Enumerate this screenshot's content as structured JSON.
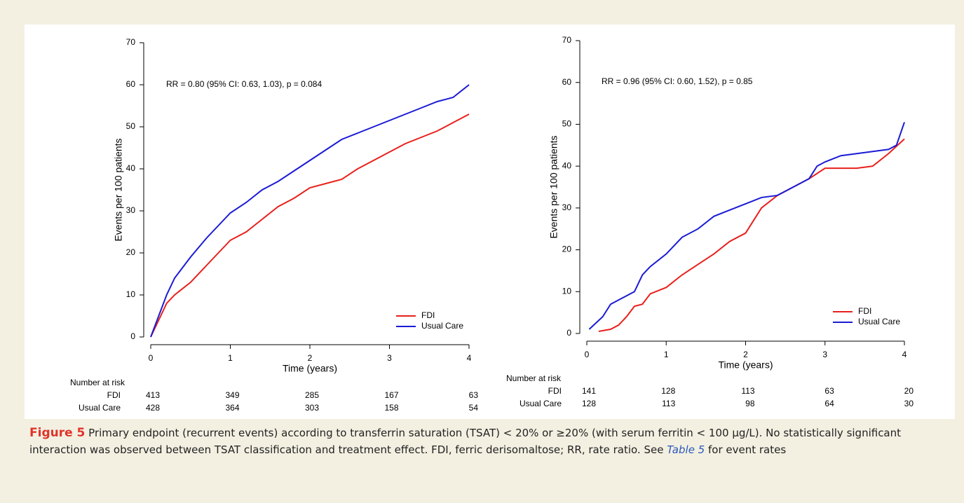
{
  "chart_data": [
    {
      "type": "line",
      "annotation": "RR = 0.80 (95% CI: 0.63, 1.03), p = 0.084",
      "xlabel": "Time (years)",
      "ylabel": "Events per 100 patients",
      "xlim": [
        0,
        4
      ],
      "ylim": [
        0,
        70
      ],
      "xticks": [
        0,
        1,
        2,
        3,
        4
      ],
      "yticks": [
        0,
        10,
        20,
        30,
        40,
        50,
        60,
        70
      ],
      "legend": "lower right",
      "series": [
        {
          "name": "FDI",
          "color": "#e8201c",
          "x": [
            0,
            0.1,
            0.2,
            0.3,
            0.5,
            0.7,
            0.9,
            1.0,
            1.2,
            1.4,
            1.6,
            1.8,
            2.0,
            2.2,
            2.4,
            2.6,
            2.8,
            3.0,
            3.2,
            3.4,
            3.6,
            3.8,
            4.0
          ],
          "values": [
            0,
            4,
            8,
            10,
            13,
            17,
            21,
            23,
            25,
            28,
            31,
            33,
            35.5,
            36.5,
            37.5,
            40,
            42,
            44,
            46,
            47.5,
            49,
            51,
            53
          ]
        },
        {
          "name": "Usual Care",
          "color": "#1a1ad6",
          "x": [
            0,
            0.1,
            0.2,
            0.3,
            0.5,
            0.7,
            0.9,
            1.0,
            1.2,
            1.4,
            1.6,
            1.8,
            2.0,
            2.2,
            2.4,
            2.6,
            2.8,
            3.0,
            3.2,
            3.4,
            3.6,
            3.8,
            4.0
          ],
          "values": [
            0,
            5,
            10,
            14,
            19,
            23.5,
            27.5,
            29.5,
            32,
            35,
            37,
            39.5,
            42,
            44.5,
            47,
            48.5,
            50,
            51.5,
            53,
            54.5,
            56,
            57,
            60
          ]
        }
      ],
      "risk_table": {
        "title": "Number at risk",
        "rows": [
          {
            "name": "FDI",
            "values": [
              413,
              349,
              285,
              167,
              63
            ]
          },
          {
            "name": "Usual Care",
            "values": [
              428,
              364,
              303,
              158,
              54
            ]
          }
        ]
      }
    },
    {
      "type": "line",
      "annotation": "RR = 0.96 (95% CI: 0.60, 1.52), p = 0.85",
      "xlabel": "Time (years)",
      "ylabel": "Events per 100 patients",
      "xlim": [
        0,
        4
      ],
      "ylim": [
        0,
        70
      ],
      "xticks": [
        0,
        1,
        2,
        3,
        4
      ],
      "yticks": [
        0,
        10,
        20,
        30,
        40,
        50,
        60,
        70
      ],
      "legend": "lower right",
      "series": [
        {
          "name": "FDI",
          "color": "#e8201c",
          "x": [
            0.15,
            0.3,
            0.4,
            0.5,
            0.6,
            0.7,
            0.8,
            1.0,
            1.2,
            1.4,
            1.6,
            1.8,
            2.0,
            2.2,
            2.4,
            2.6,
            2.8,
            3.0,
            3.2,
            3.4,
            3.6,
            3.8,
            4.0
          ],
          "values": [
            0.5,
            1,
            2,
            4,
            6.5,
            7,
            9.5,
            11,
            14,
            16.5,
            19,
            22,
            24,
            30,
            33,
            35,
            37,
            39.5,
            39.5,
            39.5,
            40,
            43,
            46.5
          ]
        },
        {
          "name": "Usual Care",
          "color": "#1a1ad6",
          "x": [
            0.03,
            0.2,
            0.3,
            0.5,
            0.6,
            0.7,
            0.8,
            1.0,
            1.2,
            1.4,
            1.6,
            1.8,
            2.0,
            2.2,
            2.4,
            2.6,
            2.8,
            2.9,
            3.0,
            3.2,
            3.4,
            3.6,
            3.8,
            3.9,
            4.0
          ],
          "values": [
            1,
            4,
            7,
            9,
            10,
            14,
            16,
            19,
            23,
            25,
            28,
            29.5,
            31,
            32.5,
            33,
            35,
            37,
            40,
            41,
            42.5,
            43,
            43.5,
            44,
            45,
            50.5
          ]
        }
      ],
      "risk_table": {
        "title": "Number at risk",
        "rows": [
          {
            "name": "FDI",
            "values": [
              141,
              128,
              113,
              63,
              20
            ]
          },
          {
            "name": "Usual Care",
            "values": [
              128,
              113,
              98,
              64,
              30
            ]
          }
        ]
      }
    }
  ],
  "caption": {
    "label": "Figure 5",
    "text": "Primary endpoint (recurrent events) according to transferrin saturation (TSAT) < 20% or ≥20% (with serum ferritin < 100 μg/L). No statistically significant interaction was observed between TSAT classification and treatment effect. FDI, ferric derisomaltose; RR, rate ratio. See ",
    "link": "Table 5",
    "text_after": " for event rates"
  }
}
